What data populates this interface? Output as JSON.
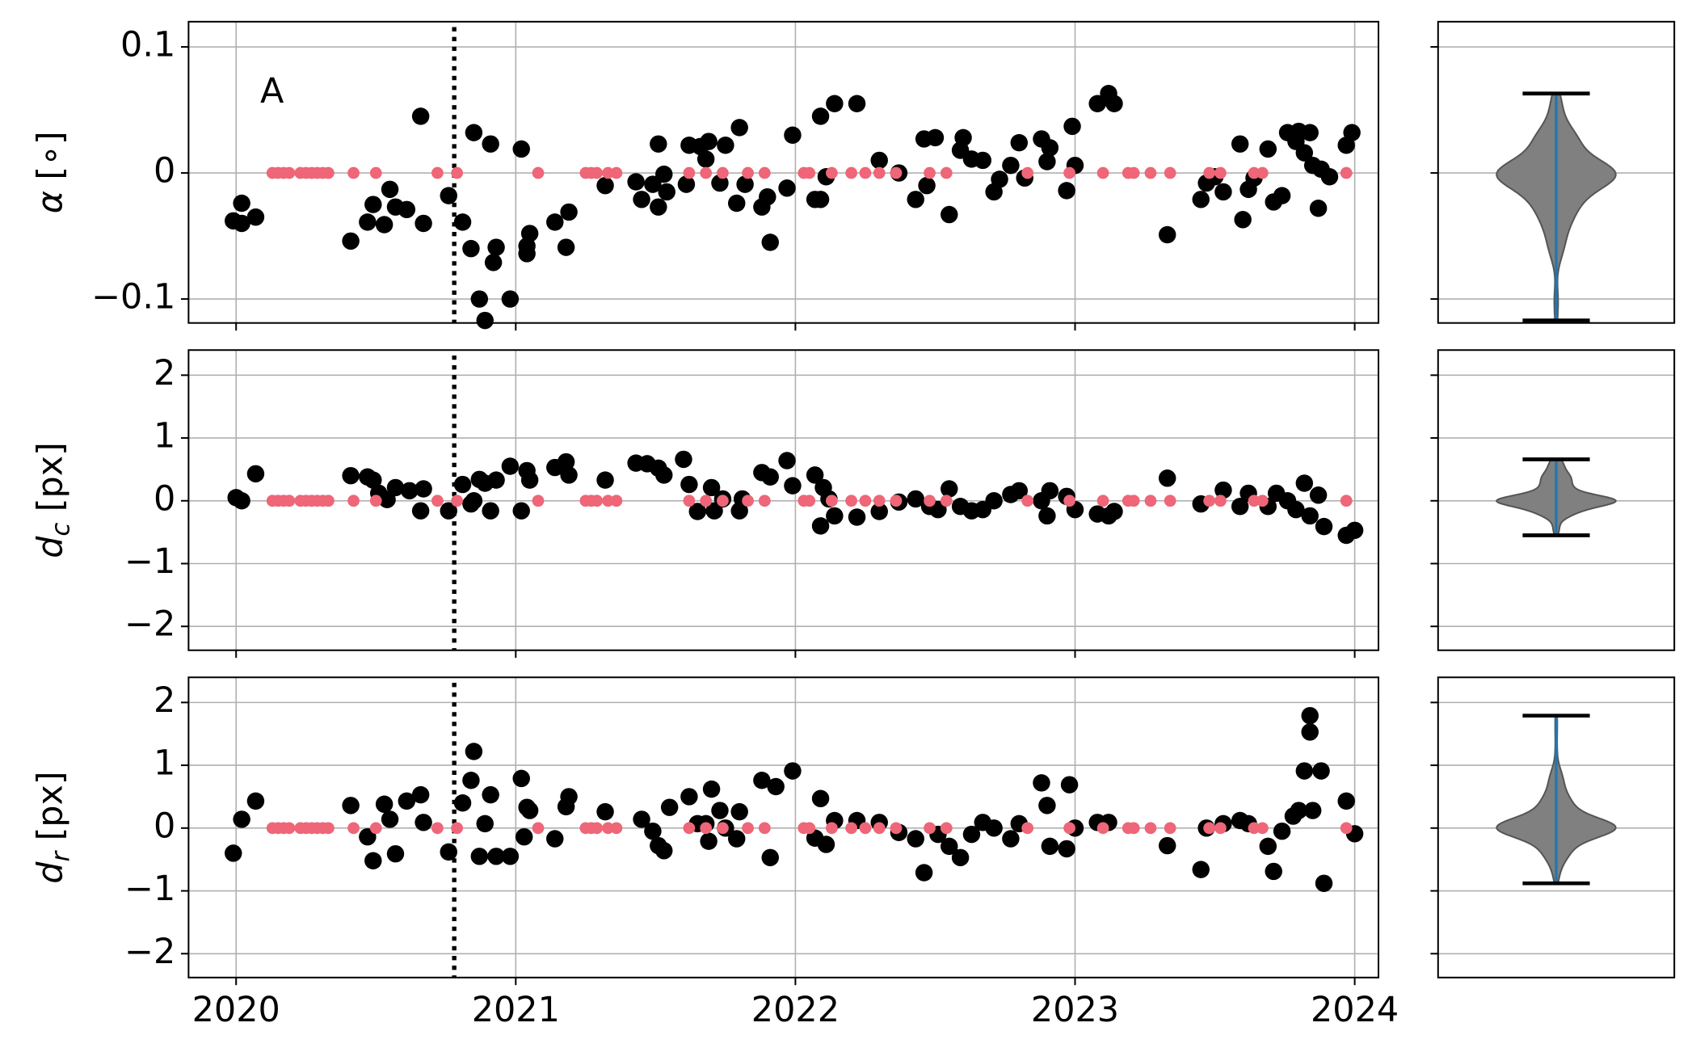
{
  "chart_data": [
    {
      "type": "scatter",
      "annotation": "A",
      "ylabel": {
        "symbol": "α",
        "unit": "[∘]"
      },
      "xlim": [
        2019.83,
        2024.085
      ],
      "xticks": [
        2020,
        2021,
        2022,
        2023,
        2024
      ],
      "xtick_labels": false,
      "ylim": [
        -0.119,
        0.12
      ],
      "yticks": [
        0.1,
        0,
        {
          "value": -0.1,
          "label": "−0.1"
        }
      ],
      "grid": true,
      "vline": 2020.78,
      "violin": {
        "color": "#808080",
        "line_color": "#1f77b4"
      },
      "series": [
        {
          "color": "#000000",
          "marker_size": 8,
          "x": [
            2019.99,
            2020.02,
            2020.02,
            2020.07,
            2020.41,
            2020.47,
            2020.49,
            2020.53,
            2020.55,
            2020.57,
            2020.61,
            2020.66,
            2020.67,
            2020.76,
            2020.81,
            2020.84,
            2020.85,
            2020.87,
            2020.89,
            2020.91,
            2020.92,
            2020.93,
            2020.98,
            2021.02,
            2021.04,
            2021.04,
            2021.05,
            2021.14,
            2021.18,
            2021.19,
            2021.32,
            2021.43,
            2021.45,
            2021.49,
            2021.51,
            2021.51,
            2021.54,
            2021.53,
            2021.61,
            2021.62,
            2021.66,
            2021.68,
            2021.69,
            2021.73,
            2021.75,
            2021.79,
            2021.8,
            2021.82,
            2021.88,
            2021.9,
            2021.91,
            2021.97,
            2021.99,
            2022.07,
            2022.09,
            2022.09,
            2022.11,
            2022.14,
            2022.22,
            2022.3,
            2022.37,
            2022.43,
            2022.46,
            2022.47,
            2022.5,
            2022.55,
            2022.59,
            2022.6,
            2022.63,
            2022.67,
            2022.71,
            2022.73,
            2022.77,
            2022.8,
            2022.82,
            2022.88,
            2022.9,
            2022.91,
            2022.97,
            2022.99,
            2023.0,
            2023.08,
            2023.12,
            2023.14,
            2023.33,
            2023.45,
            2023.47,
            2023.5,
            2023.53,
            2023.59,
            2023.6,
            2023.62,
            2023.64,
            2023.69,
            2023.71,
            2023.74,
            2023.76,
            2023.79,
            2023.8,
            2023.82,
            2023.84,
            2023.85,
            2023.87,
            2023.88,
            2023.91,
            2023.97,
            2023.99
          ],
          "values": [
            -0.038,
            -0.024,
            -0.04,
            -0.035,
            -0.054,
            -0.039,
            -0.025,
            -0.041,
            -0.013,
            -0.027,
            -0.029,
            0.045,
            -0.04,
            -0.018,
            -0.039,
            -0.06,
            0.032,
            -0.1,
            -0.117,
            0.023,
            -0.071,
            -0.059,
            -0.1,
            0.019,
            -0.064,
            -0.058,
            -0.048,
            -0.039,
            -0.059,
            -0.031,
            -0.01,
            -0.007,
            -0.021,
            -0.009,
            0.023,
            -0.027,
            -0.015,
            -0.001,
            -0.009,
            0.022,
            0.021,
            0.011,
            0.025,
            -0.008,
            0.022,
            -0.024,
            0.036,
            -0.009,
            -0.027,
            -0.019,
            -0.055,
            -0.012,
            0.03,
            -0.021,
            0.045,
            -0.021,
            -0.003,
            0.055,
            0.055,
            0.01,
            0.0,
            -0.021,
            0.027,
            -0.01,
            0.028,
            -0.033,
            0.018,
            0.028,
            0.011,
            0.01,
            -0.015,
            -0.005,
            0.006,
            0.024,
            -0.004,
            0.027,
            0.009,
            0.02,
            -0.014,
            0.037,
            0.006,
            0.055,
            0.063,
            0.055,
            -0.049,
            -0.021,
            -0.008,
            -0.003,
            -0.015,
            0.023,
            -0.037,
            -0.013,
            -0.004,
            0.019,
            -0.023,
            -0.018,
            0.032,
            0.025,
            0.033,
            0.016,
            0.032,
            0.006,
            -0.028,
            0.003,
            -0.003,
            0.022,
            0.032
          ]
        },
        {
          "color": "#ee6677",
          "marker_size": 5.5,
          "x": [
            2020.13,
            2020.15,
            2020.17,
            2020.19,
            2020.23,
            2020.25,
            2020.27,
            2020.29,
            2020.31,
            2020.33,
            2020.42,
            2020.5,
            2020.72,
            2020.79,
            2021.08,
            2021.25,
            2021.27,
            2021.29,
            2021.33,
            2021.36,
            2021.62,
            2021.68,
            2021.74,
            2021.83,
            2021.89,
            2022.03,
            2022.05,
            2022.13,
            2022.2,
            2022.25,
            2022.3,
            2022.36,
            2022.48,
            2022.54,
            2022.83,
            2022.98,
            2023.1,
            2023.19,
            2023.21,
            2023.27,
            2023.34,
            2023.48,
            2023.52,
            2023.64,
            2023.67,
            2023.97
          ],
          "values": [
            0,
            0,
            0,
            0,
            0,
            0,
            0,
            0,
            0,
            0,
            0,
            0,
            0,
            0,
            0,
            0,
            0,
            0,
            0,
            0,
            0,
            0,
            0,
            0,
            0,
            0,
            0,
            0,
            0,
            0,
            0,
            0,
            0,
            0,
            0,
            0,
            0,
            0,
            0,
            0,
            0,
            0,
            0,
            0,
            0,
            0
          ]
        }
      ]
    },
    {
      "type": "scatter",
      "ylabel": {
        "symbol": "d",
        "subscript": "c",
        "unit": "[px]"
      },
      "xlim": [
        2019.83,
        2024.085
      ],
      "xticks": [
        2020,
        2021,
        2022,
        2023,
        2024
      ],
      "xtick_labels": false,
      "ylim": [
        -2.38,
        2.4
      ],
      "yticks": [
        2,
        1,
        0,
        {
          "value": -1,
          "label": "−1"
        },
        {
          "value": -2,
          "label": "−2"
        }
      ],
      "grid": true,
      "vline": 2020.78,
      "violin": {
        "color": "#808080",
        "line_color": "#1f77b4"
      },
      "series": [
        {
          "color": "#000000",
          "marker_size": 8,
          "x": [
            2020.0,
            2020.02,
            2020.07,
            2020.41,
            2020.47,
            2020.49,
            2020.51,
            2020.54,
            2020.57,
            2020.62,
            2020.66,
            2020.67,
            2020.76,
            2020.81,
            2020.84,
            2020.85,
            2020.87,
            2020.89,
            2020.91,
            2020.93,
            2020.98,
            2021.02,
            2021.04,
            2021.05,
            2021.14,
            2021.18,
            2021.19,
            2021.32,
            2021.43,
            2021.47,
            2021.51,
            2021.53,
            2021.6,
            2021.62,
            2021.65,
            2021.7,
            2021.71,
            2021.74,
            2021.8,
            2021.81,
            2021.88,
            2021.91,
            2021.97,
            2021.99,
            2022.07,
            2022.09,
            2022.1,
            2022.12,
            2022.14,
            2022.22,
            2022.3,
            2022.37,
            2022.43,
            2022.48,
            2022.51,
            2022.55,
            2022.59,
            2022.63,
            2022.67,
            2022.71,
            2022.77,
            2022.8,
            2022.88,
            2022.9,
            2022.91,
            2022.97,
            2023.0,
            2023.08,
            2023.12,
            2023.14,
            2023.33,
            2023.45,
            2023.53,
            2023.59,
            2023.62,
            2023.69,
            2023.72,
            2023.76,
            2023.79,
            2023.82,
            2023.84,
            2023.87,
            2023.89,
            2023.97,
            2024.0
          ],
          "values": [
            0.05,
            0.0,
            0.43,
            0.4,
            0.38,
            0.33,
            0.12,
            0.02,
            0.21,
            0.16,
            -0.16,
            0.19,
            -0.16,
            0.26,
            -0.05,
            0.0,
            0.34,
            0.28,
            -0.16,
            0.33,
            0.55,
            -0.16,
            0.48,
            0.33,
            0.53,
            0.62,
            0.41,
            0.33,
            0.6,
            0.59,
            0.52,
            0.41,
            0.66,
            0.26,
            -0.17,
            0.21,
            -0.16,
            0.03,
            -0.16,
            0.03,
            0.45,
            0.38,
            0.64,
            0.24,
            0.41,
            -0.4,
            0.21,
            0.03,
            -0.24,
            -0.26,
            -0.17,
            -0.02,
            0.03,
            -0.09,
            -0.14,
            0.19,
            -0.09,
            -0.16,
            -0.14,
            0.0,
            0.1,
            0.16,
            0.0,
            -0.24,
            0.16,
            0.07,
            -0.14,
            -0.21,
            -0.24,
            -0.17,
            0.36,
            -0.05,
            0.17,
            -0.09,
            0.12,
            -0.09,
            0.12,
            0.0,
            -0.14,
            0.28,
            -0.24,
            0.09,
            -0.41,
            -0.55,
            -0.47
          ]
        },
        {
          "color": "#ee6677",
          "marker_size": 5.5,
          "x": [
            2020.13,
            2020.15,
            2020.17,
            2020.19,
            2020.23,
            2020.25,
            2020.27,
            2020.29,
            2020.31,
            2020.33,
            2020.42,
            2020.5,
            2020.72,
            2020.79,
            2021.08,
            2021.25,
            2021.27,
            2021.29,
            2021.33,
            2021.36,
            2021.62,
            2021.68,
            2021.74,
            2021.83,
            2021.89,
            2022.03,
            2022.05,
            2022.13,
            2022.2,
            2022.25,
            2022.3,
            2022.36,
            2022.48,
            2022.54,
            2022.83,
            2022.98,
            2023.1,
            2023.19,
            2023.21,
            2023.27,
            2023.34,
            2023.48,
            2023.52,
            2023.64,
            2023.67,
            2023.97
          ],
          "values": [
            0,
            0,
            0,
            0,
            0,
            0,
            0,
            0,
            0,
            0,
            0,
            0,
            0,
            0,
            0,
            0,
            0,
            0,
            0,
            0,
            0,
            0,
            0,
            0,
            0,
            0,
            0,
            0,
            0,
            0,
            0,
            0,
            0,
            0,
            0,
            0,
            0,
            0,
            0,
            0,
            0,
            0,
            0,
            0,
            0,
            0
          ]
        }
      ]
    },
    {
      "type": "scatter",
      "ylabel": {
        "symbol": "d",
        "subscript": "r",
        "unit": "[px]"
      },
      "xlim": [
        2019.83,
        2024.085
      ],
      "xticks": [
        2020,
        2021,
        2022,
        2023,
        2024
      ],
      "xtick_labels": true,
      "ylim": [
        -2.38,
        2.4
      ],
      "yticks": [
        2,
        1,
        0,
        {
          "value": -1,
          "label": "−1"
        },
        {
          "value": -2,
          "label": "−2"
        }
      ],
      "grid": true,
      "vline": 2020.78,
      "violin": {
        "color": "#808080",
        "line_color": "#1f77b4"
      },
      "series": [
        {
          "color": "#000000",
          "marker_size": 8,
          "x": [
            2019.99,
            2020.02,
            2020.07,
            2020.41,
            2020.47,
            2020.49,
            2020.53,
            2020.55,
            2020.57,
            2020.61,
            2020.66,
            2020.67,
            2020.76,
            2020.81,
            2020.84,
            2020.85,
            2020.87,
            2020.89,
            2020.91,
            2020.93,
            2020.98,
            2021.02,
            2021.03,
            2021.04,
            2021.05,
            2021.14,
            2021.18,
            2021.19,
            2021.32,
            2021.45,
            2021.49,
            2021.51,
            2021.53,
            2021.55,
            2021.62,
            2021.65,
            2021.68,
            2021.69,
            2021.7,
            2021.73,
            2021.75,
            2021.79,
            2021.8,
            2021.88,
            2021.91,
            2021.93,
            2021.99,
            2022.07,
            2022.09,
            2022.11,
            2022.14,
            2022.22,
            2022.3,
            2022.37,
            2022.43,
            2022.46,
            2022.51,
            2022.55,
            2022.59,
            2022.63,
            2022.67,
            2022.71,
            2022.77,
            2022.8,
            2022.88,
            2022.9,
            2022.91,
            2022.97,
            2022.98,
            2023.0,
            2023.08,
            2023.12,
            2023.33,
            2023.45,
            2023.47,
            2023.53,
            2023.59,
            2023.62,
            2023.69,
            2023.71,
            2023.74,
            2023.78,
            2023.8,
            2023.82,
            2023.84,
            2023.84,
            2023.85,
            2023.88,
            2023.89,
            2023.97,
            2024.0
          ],
          "values": [
            -0.4,
            0.14,
            0.43,
            0.36,
            -0.14,
            -0.52,
            0.38,
            0.14,
            -0.41,
            0.43,
            0.53,
            0.09,
            -0.38,
            0.4,
            0.76,
            1.22,
            -0.45,
            0.07,
            0.53,
            -0.45,
            -0.45,
            0.79,
            -0.14,
            0.33,
            0.28,
            -0.17,
            0.34,
            0.5,
            0.26,
            0.14,
            -0.05,
            -0.28,
            -0.36,
            0.33,
            0.5,
            0.07,
            0.07,
            -0.21,
            0.62,
            0.28,
            0.0,
            -0.17,
            0.26,
            0.76,
            -0.47,
            0.66,
            0.91,
            -0.16,
            0.47,
            -0.26,
            0.12,
            0.12,
            0.09,
            -0.07,
            -0.17,
            -0.71,
            -0.1,
            -0.29,
            -0.47,
            -0.1,
            0.09,
            0.0,
            -0.17,
            0.07,
            0.72,
            0.36,
            -0.29,
            -0.33,
            0.69,
            0.0,
            0.09,
            0.09,
            -0.28,
            -0.66,
            0.0,
            0.07,
            0.12,
            0.07,
            -0.29,
            -0.69,
            -0.05,
            0.19,
            0.28,
            0.91,
            1.53,
            1.79,
            0.28,
            0.91,
            -0.88,
            0.43,
            -0.09
          ]
        },
        {
          "color": "#ee6677",
          "marker_size": 5.5,
          "x": [
            2020.13,
            2020.15,
            2020.17,
            2020.19,
            2020.23,
            2020.25,
            2020.27,
            2020.29,
            2020.31,
            2020.33,
            2020.42,
            2020.5,
            2020.72,
            2020.79,
            2021.08,
            2021.25,
            2021.27,
            2021.29,
            2021.33,
            2021.36,
            2021.62,
            2021.68,
            2021.74,
            2021.83,
            2021.89,
            2022.03,
            2022.05,
            2022.13,
            2022.2,
            2022.25,
            2022.3,
            2022.36,
            2022.48,
            2022.54,
            2022.83,
            2022.98,
            2023.1,
            2023.19,
            2023.21,
            2023.27,
            2023.34,
            2023.48,
            2023.52,
            2023.64,
            2023.67,
            2023.97
          ],
          "values": [
            0,
            0,
            0,
            0,
            0,
            0,
            0,
            0,
            0,
            0,
            0,
            0,
            0,
            0,
            0,
            0,
            0,
            0,
            0,
            0,
            0,
            0,
            0,
            0,
            0,
            0,
            0,
            0,
            0,
            0,
            0,
            0,
            0,
            0,
            0,
            0,
            0,
            0,
            0,
            0,
            0,
            0,
            0,
            0,
            0,
            0
          ]
        }
      ]
    }
  ]
}
